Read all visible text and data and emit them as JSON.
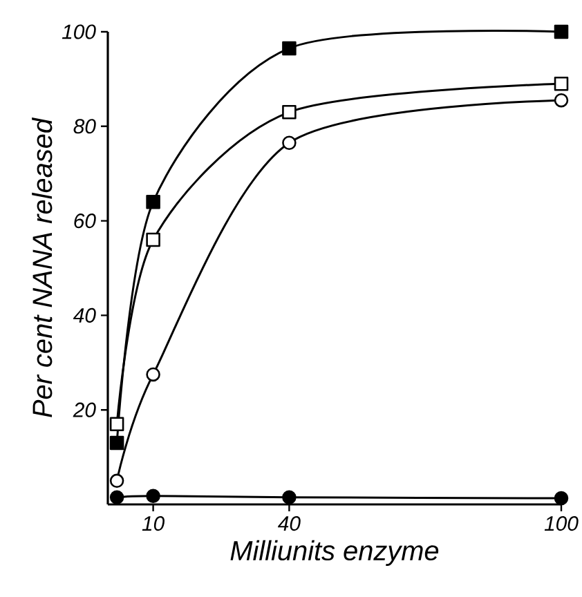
{
  "chart_data": {
    "type": "line",
    "xlabel": "Milliunits enzyme",
    "ylabel": "Per cent NANA released",
    "xlim": [
      0,
      100
    ],
    "ylim": [
      0,
      100
    ],
    "xticks": [
      10,
      40,
      100
    ],
    "yticks": [
      20,
      40,
      60,
      80,
      100
    ],
    "grid": false,
    "line_style": "solid",
    "series": [
      {
        "color": "#000000",
        "marker": "square",
        "x": [
          2,
          10,
          40,
          100
        ],
        "values": [
          13,
          64,
          96.5,
          100
        ]
      },
      {
        "color": "#000000",
        "marker": "square",
        "x": [
          2,
          10,
          40,
          100
        ],
        "values": [
          17,
          56,
          83,
          89
        ]
      },
      {
        "color": "#000000",
        "marker": "circle",
        "x": [
          2,
          10,
          40,
          100
        ],
        "values": [
          5,
          27.5,
          76.5,
          85.5
        ]
      },
      {
        "color": "#000000",
        "marker": "circle",
        "x": [
          2,
          10,
          40,
          100
        ],
        "values": [
          1.5,
          1.8,
          1.5,
          1.3
        ]
      }
    ]
  }
}
